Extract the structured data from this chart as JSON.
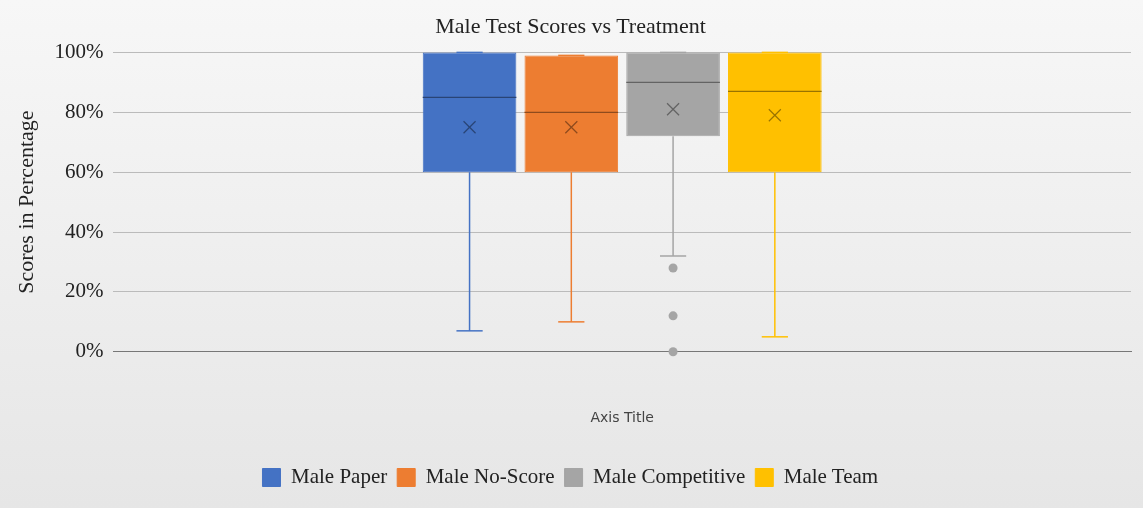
{
  "chart_data": {
    "type": "box",
    "title": "Male Test Scores vs Treatment",
    "xlabel": "Axis Title",
    "ylabel": "Scores in Percentage",
    "categories": [
      null
    ],
    "series": [
      {
        "name": "Male Paper",
        "color": "#4472c4",
        "boxes": [
          {
            "low": 7,
            "q1": 60,
            "median": 85,
            "q3": 100,
            "high": 100,
            "mean": 75
          }
        ]
      },
      {
        "name": "Male No-Score",
        "color": "#ed7d31",
        "boxes": [
          {
            "low": 10,
            "q1": 60,
            "median": 80,
            "q3": 99,
            "high": 99,
            "mean": 75
          }
        ]
      },
      {
        "name": "Male Competitive",
        "color": "#a5a5a5",
        "boxes": [
          {
            "low": 32,
            "q1": 72,
            "median": 90,
            "q3": 100,
            "high": 100,
            "mean": 81,
            "outliers": [
              28,
              12,
              0
            ]
          }
        ]
      },
      {
        "name": "Male Team",
        "color": "#ffc000",
        "boxes": [
          {
            "low": 5,
            "q1": 60,
            "median": 87,
            "q3": 100,
            "high": 100,
            "mean": 79
          }
        ]
      }
    ],
    "ylim": [
      0,
      100
    ],
    "yticks": [
      {
        "value": 0,
        "label": "0%"
      },
      {
        "value": 20,
        "label": "20%"
      },
      {
        "value": 40,
        "label": "40%"
      },
      {
        "value": 60,
        "label": "60%"
      },
      {
        "value": 80,
        "label": "80%"
      },
      {
        "value": 100,
        "label": "100%"
      }
    ],
    "grid": "y",
    "legend": "bottom"
  }
}
